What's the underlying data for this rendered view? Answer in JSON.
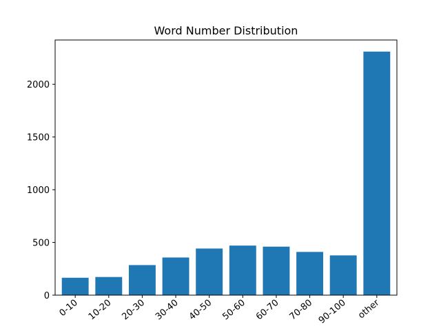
{
  "chart_data": {
    "type": "bar",
    "title": "Word Number Distribution",
    "xlabel": "",
    "ylabel": "",
    "categories": [
      "0-10",
      "10-20",
      "20-30",
      "30-40",
      "40-50",
      "50-60",
      "60-70",
      "70-80",
      "90-100",
      "other"
    ],
    "values": [
      165,
      172,
      285,
      357,
      442,
      470,
      460,
      410,
      377,
      2310
    ],
    "ylim": [
      0,
      2420
    ],
    "yticks": [
      0,
      500,
      1000,
      1500,
      2000
    ],
    "bar_color": "#1f77b4",
    "grid": false,
    "legend": "none"
  }
}
